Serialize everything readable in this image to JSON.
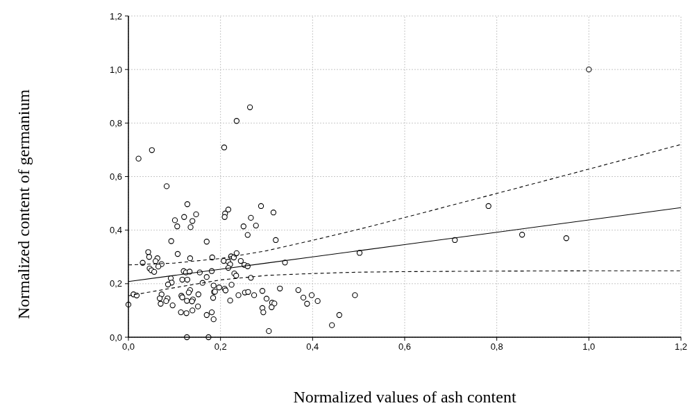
{
  "chart_data": {
    "type": "scatter",
    "xlabel": "Normalized values of ash content",
    "ylabel": "Normalized content of germanium",
    "marker": "circle",
    "grid": true,
    "xlim": [
      0,
      1.2
    ],
    "ylim": [
      0,
      1.2
    ],
    "xticks": [
      {
        "value": 0,
        "label": "0,0"
      },
      {
        "value": 0.2,
        "label": "0,2"
      },
      {
        "value": 0.4,
        "label": "0,4"
      },
      {
        "value": 0.6,
        "label": "0,6"
      },
      {
        "value": 0.8,
        "label": "0,8"
      },
      {
        "value": 1.0,
        "label": "1,0"
      },
      {
        "value": 1.2,
        "label": "1,2"
      }
    ],
    "yticks": [
      {
        "value": 0,
        "label": "0,0"
      },
      {
        "value": 0.2,
        "label": "0,2"
      },
      {
        "value": 0.4,
        "label": "0,4"
      },
      {
        "value": 0.6,
        "label": "0,6"
      },
      {
        "value": 0.8,
        "label": "0,8"
      },
      {
        "value": 1.0,
        "label": "1,0"
      },
      {
        "value": 1.2,
        "label": "1,2"
      }
    ],
    "series": [
      {
        "color": "#000000",
        "x": [
          0.022,
          0.051,
          0.083,
          0.128,
          0.147,
          0.121,
          0.101,
          0.139,
          0.106,
          0.135,
          0.093,
          0.17,
          0.043,
          0.045,
          0.031,
          0.063,
          0.059,
          0.072,
          0.065,
          0.046,
          0.05,
          0.056,
          0.107,
          0.134,
          0.182,
          0.12,
          0.125,
          0.133,
          0.155,
          0.181,
          0.092,
          0.17,
          0.117,
          0.128,
          0.094,
          0.086,
          0.161,
          0.185,
          0.011,
          0.018,
          0.0,
          0.072,
          0.068,
          0.085,
          0.082,
          0.07,
          0.096,
          0.115,
          0.134,
          0.131,
          0.117,
          0.127,
          0.14,
          0.138,
          0.152,
          0.184,
          0.186,
          0.151,
          0.114,
          0.126,
          0.139,
          0.17,
          0.181,
          0.185,
          0.127,
          0.174,
          0.264,
          0.235,
          0.208,
          0.288,
          0.217,
          0.315,
          0.21,
          0.209,
          0.266,
          0.25,
          0.277,
          0.259,
          0.32,
          0.235,
          0.223,
          0.229,
          0.207,
          0.217,
          0.244,
          0.221,
          0.217,
          0.252,
          0.259,
          0.34,
          0.23,
          0.234,
          0.266,
          0.197,
          0.209,
          0.211,
          0.224,
          0.188,
          0.221,
          0.239,
          0.253,
          0.26,
          0.273,
          0.291,
          0.3,
          0.312,
          0.317,
          0.311,
          0.291,
          0.293,
          0.329,
          0.369,
          0.38,
          0.398,
          0.388,
          0.411,
          0.492,
          0.502,
          0.458,
          0.442,
          0.305,
          0.709,
          0.782,
          0.855,
          0.951,
          1.0
        ],
        "values": [
          0.667,
          0.699,
          0.564,
          0.497,
          0.459,
          0.449,
          0.437,
          0.434,
          0.414,
          0.411,
          0.359,
          0.357,
          0.318,
          0.3,
          0.278,
          0.295,
          0.284,
          0.273,
          0.264,
          0.257,
          0.25,
          0.244,
          0.311,
          0.295,
          0.298,
          0.247,
          0.242,
          0.245,
          0.242,
          0.247,
          0.22,
          0.225,
          0.215,
          0.215,
          0.204,
          0.197,
          0.203,
          0.193,
          0.16,
          0.156,
          0.122,
          0.16,
          0.145,
          0.145,
          0.135,
          0.125,
          0.119,
          0.155,
          0.176,
          0.167,
          0.149,
          0.136,
          0.141,
          0.134,
          0.16,
          0.147,
          0.169,
          0.115,
          0.093,
          0.09,
          0.1,
          0.083,
          0.093,
          0.067,
          0.0,
          0.0,
          0.859,
          0.808,
          0.709,
          0.49,
          0.477,
          0.466,
          0.462,
          0.449,
          0.446,
          0.414,
          0.417,
          0.382,
          0.363,
          0.314,
          0.302,
          0.298,
          0.285,
          0.282,
          0.285,
          0.272,
          0.259,
          0.27,
          0.265,
          0.279,
          0.238,
          0.23,
          0.222,
          0.186,
          0.181,
          0.175,
          0.196,
          0.17,
          0.137,
          0.157,
          0.167,
          0.169,
          0.157,
          0.173,
          0.144,
          0.129,
          0.126,
          0.112,
          0.109,
          0.093,
          0.182,
          0.176,
          0.148,
          0.157,
          0.125,
          0.135,
          0.157,
          0.315,
          0.083,
          0.045,
          0.023,
          0.363,
          0.49,
          0.383,
          0.37,
          1.0
        ]
      },
      {
        "type": "line",
        "color": "#000000",
        "line_style": "solid",
        "marker": "none",
        "x": [
          0,
          0.1,
          0.2,
          0.3,
          0.4,
          0.5,
          0.6,
          0.8,
          1.0,
          1.2
        ],
        "values": [
          0.208,
          0.231,
          0.254,
          0.277,
          0.3,
          0.323,
          0.346,
          0.392,
          0.438,
          0.484
        ]
      },
      {
        "type": "line",
        "color": "#000000",
        "line_style": "dashed",
        "marker": "none",
        "x": [
          0,
          0.1,
          0.2,
          0.3,
          0.4,
          0.5,
          0.6,
          0.8,
          1.0,
          1.2
        ],
        "values": [
          0.27,
          0.277,
          0.294,
          0.323,
          0.362,
          0.403,
          0.447,
          0.537,
          0.628,
          0.72
        ]
      },
      {
        "type": "line",
        "color": "#000000",
        "line_style": "dashed",
        "marker": "none",
        "x": [
          0,
          0.1,
          0.2,
          0.3,
          0.4,
          0.5,
          0.6,
          0.8,
          1.0,
          1.2
        ],
        "values": [
          0.155,
          0.185,
          0.214,
          0.231,
          0.238,
          0.243,
          0.245,
          0.247,
          0.248,
          0.248
        ]
      }
    ]
  }
}
